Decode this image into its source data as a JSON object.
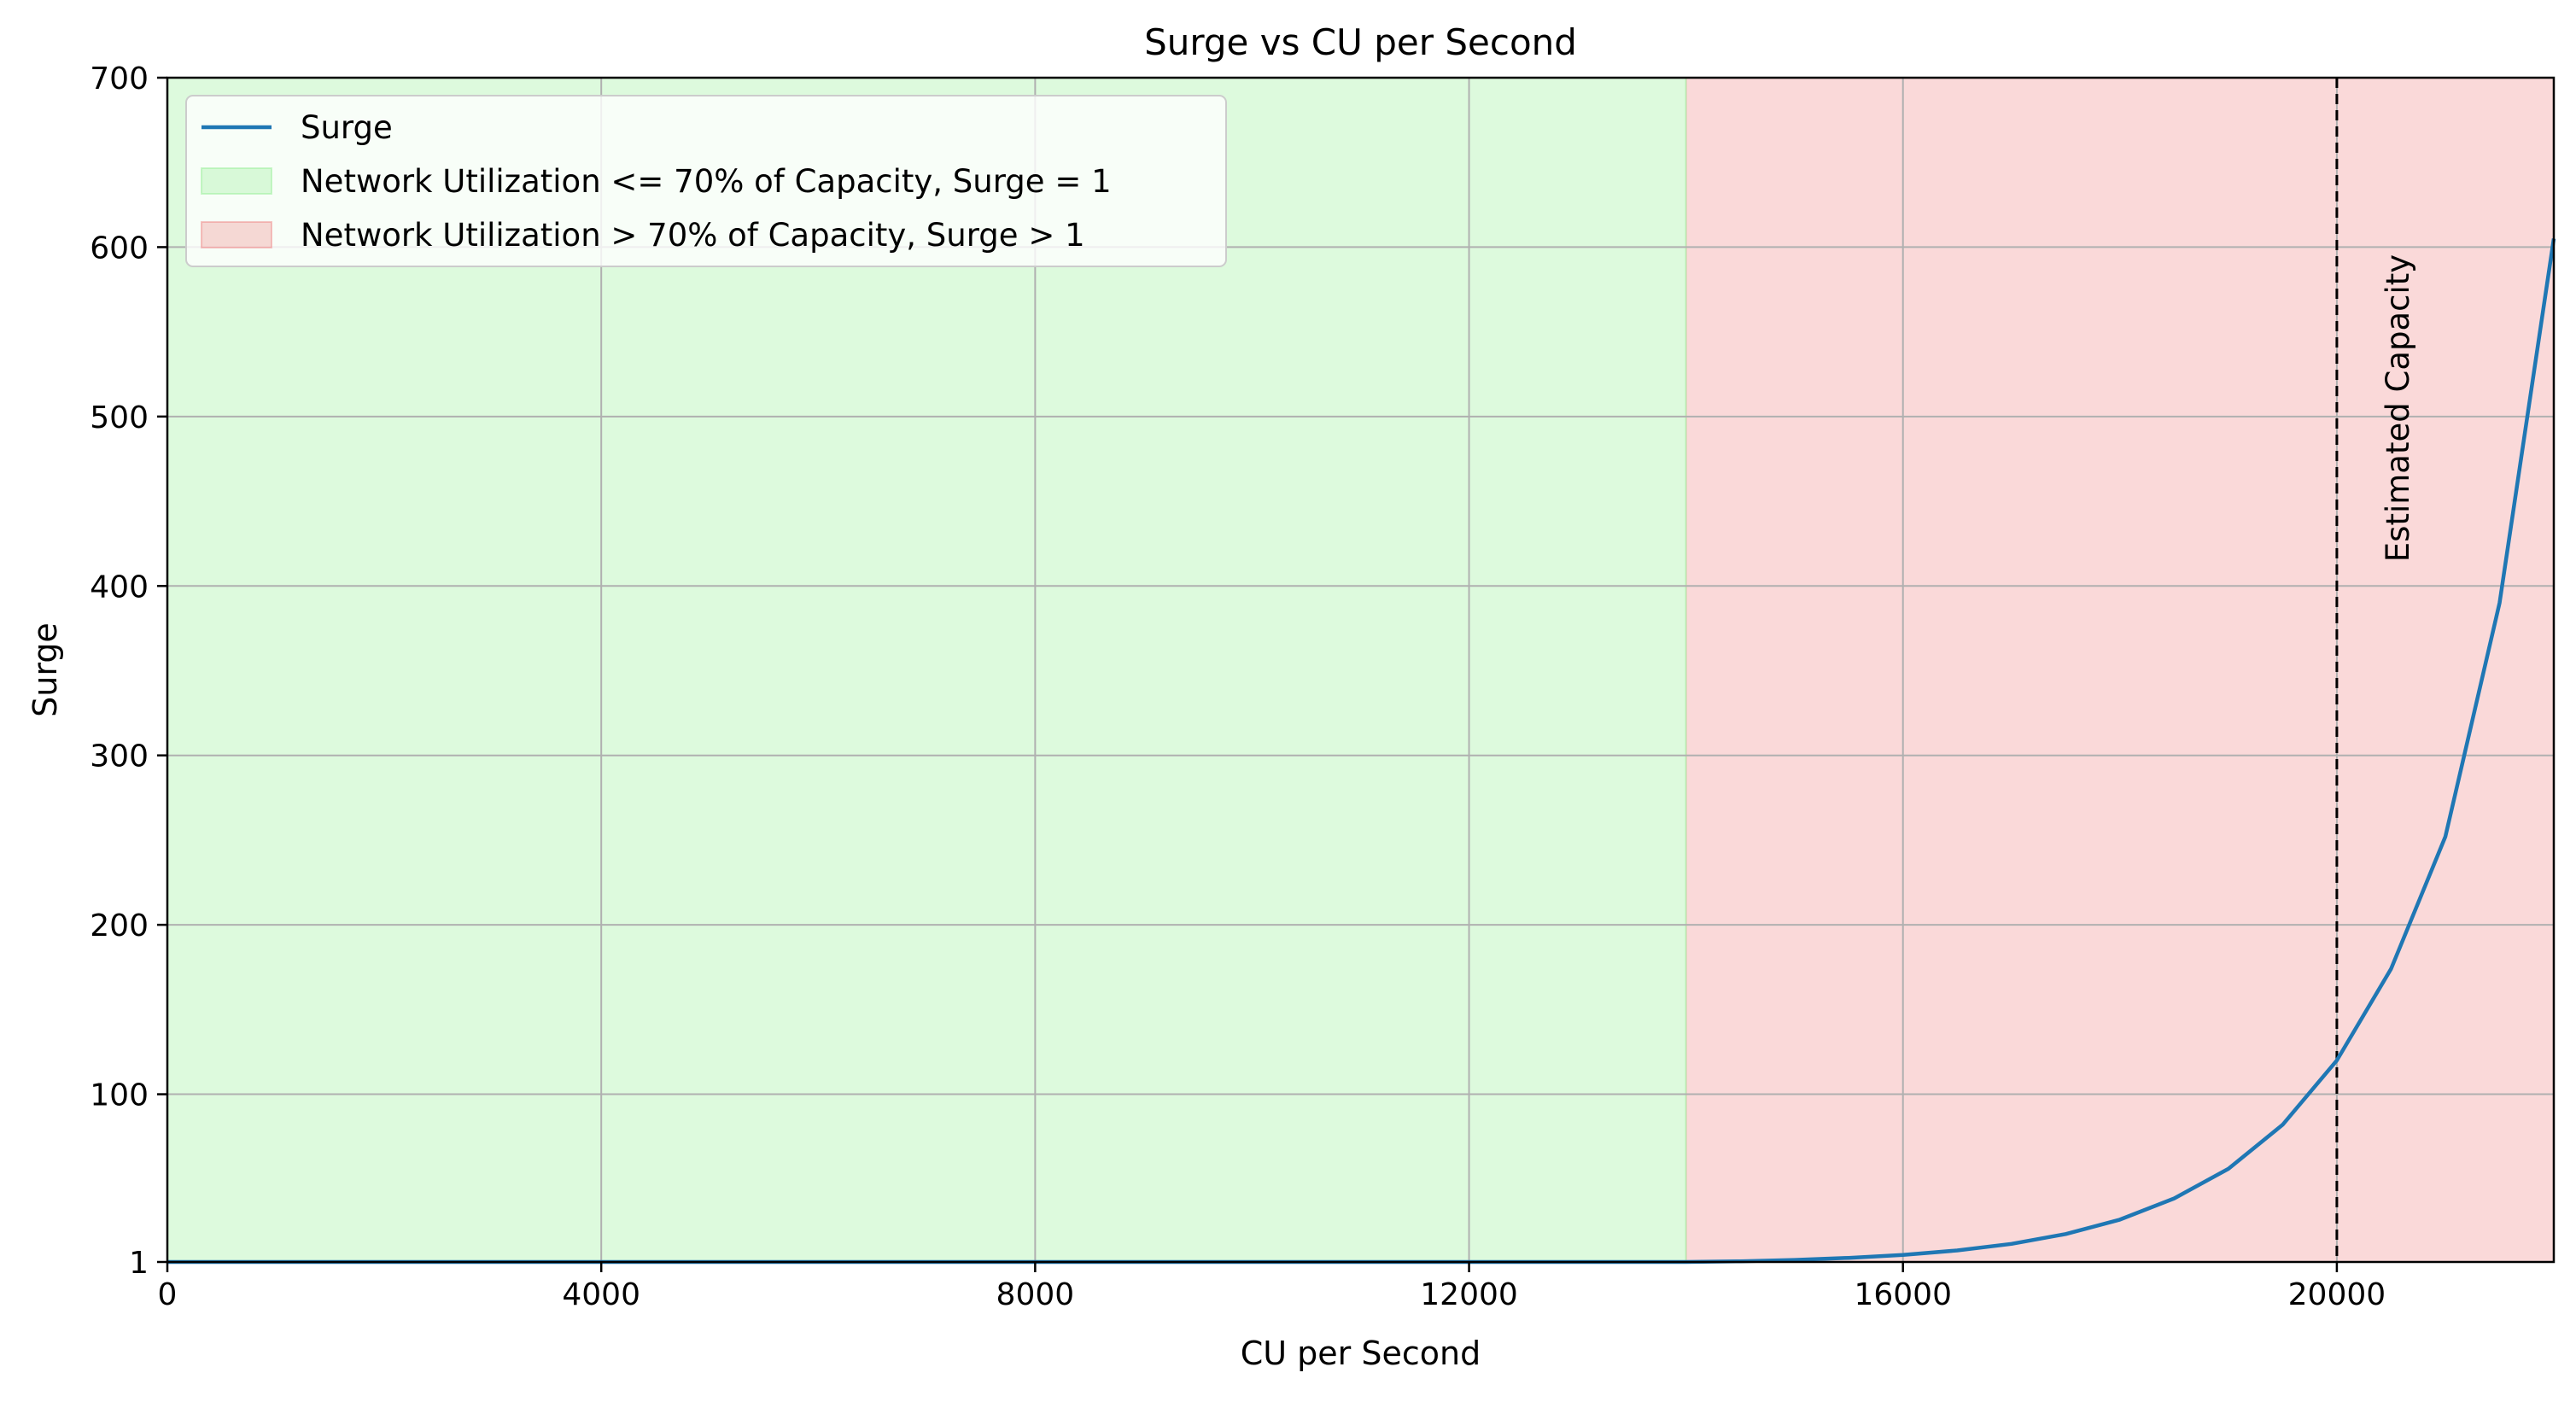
{
  "chart_data": {
    "type": "line",
    "title": "Surge vs CU per Second",
    "xlabel": "CU per Second",
    "ylabel": "Surge",
    "xlim": [
      0,
      22000
    ],
    "ylim": [
      1,
      700
    ],
    "x_ticks": [
      0,
      4000,
      8000,
      12000,
      16000,
      20000
    ],
    "y_ticks": [
      1,
      100,
      200,
      300,
      400,
      500,
      600,
      700
    ],
    "grid": true,
    "legend_position": "top-left",
    "series": [
      {
        "name": "Surge",
        "color": "#1f77b4",
        "points": [
          [
            0,
            1
          ],
          [
            14000,
            1
          ],
          [
            14500,
            1.4
          ],
          [
            15000,
            2.2
          ],
          [
            15500,
            3.4
          ],
          [
            16000,
            5.2
          ],
          [
            16500,
            7.8
          ],
          [
            17000,
            11.7
          ],
          [
            17500,
            17.5
          ],
          [
            18000,
            26
          ],
          [
            18500,
            38.5
          ],
          [
            19000,
            56
          ],
          [
            19500,
            82
          ],
          [
            20000,
            120
          ],
          [
            20500,
            174
          ],
          [
            21000,
            252
          ],
          [
            21500,
            390
          ],
          [
            22000,
            605
          ]
        ]
      }
    ],
    "regions": [
      {
        "label": "Network Utilization <= 70% of Capacity, Surge = 1",
        "x_range": [
          0,
          14000
        ],
        "color": "#90ee90"
      },
      {
        "label": "Network Utilization > 70% of Capacity, Surge > 1",
        "x_range": [
          14000,
          22000
        ],
        "color": "#f08080"
      }
    ],
    "reference_lines": [
      {
        "axis": "x",
        "value": 20000,
        "style": "dashed",
        "color": "#000000",
        "label": "Estimated Capacity"
      },
      {
        "axis": "y",
        "value": 1,
        "style": "dashed",
        "color": "#808080"
      }
    ]
  }
}
